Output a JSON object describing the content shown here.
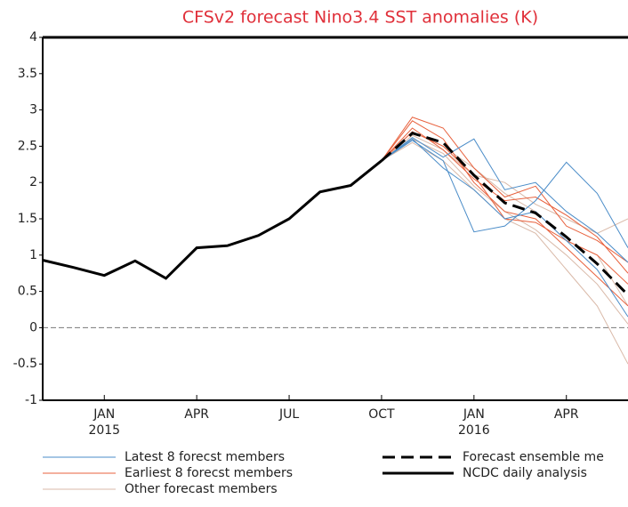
{
  "chart_data": {
    "type": "line",
    "title": "CFSv2 forecast Nino3.4 SST anomalies (K)",
    "title_color": "#e0303a",
    "categories": [
      null,
      null,
      "JAN",
      null,
      null,
      "APR",
      null,
      null,
      "JUL",
      null,
      null,
      "OCT",
      null,
      null,
      "JAN",
      null,
      null,
      "APR",
      null,
      null
    ],
    "category_years": [
      null,
      null,
      "2015",
      null,
      null,
      null,
      null,
      null,
      null,
      null,
      null,
      null,
      null,
      null,
      "2016",
      null,
      null,
      null,
      null,
      null
    ],
    "ylim": [
      -1,
      4
    ],
    "yticks": [
      -1,
      -0.5,
      0,
      0.5,
      1,
      1.5,
      2,
      2.5,
      3,
      3.5,
      4
    ],
    "member_groups": [
      {
        "name": "Other forecast members",
        "color": "#d9b9a8",
        "members": [
          [
            null,
            null,
            null,
            null,
            null,
            null,
            null,
            null,
            null,
            null,
            null,
            2.3,
            2.55,
            2.3,
            1.9,
            1.5,
            1.3,
            0.8,
            0.3,
            -0.5
          ],
          [
            null,
            null,
            null,
            null,
            null,
            null,
            null,
            null,
            null,
            null,
            null,
            2.3,
            2.65,
            2.45,
            2.1,
            2.0,
            1.7,
            1.5,
            1.3,
            1.5
          ],
          [
            null,
            null,
            null,
            null,
            null,
            null,
            null,
            null,
            null,
            null,
            null,
            2.3,
            2.6,
            2.4,
            1.95,
            1.6,
            1.35,
            1.0,
            0.6,
            0.05
          ],
          [
            null,
            null,
            null,
            null,
            null,
            null,
            null,
            null,
            null,
            null,
            null,
            2.3,
            2.7,
            2.5,
            2.2,
            1.85,
            1.6,
            1.2,
            1.0,
            0.3
          ]
        ]
      },
      {
        "name": "Earliest 8 forecst members",
        "color": "#e8603c",
        "members": [
          [
            null,
            null,
            null,
            null,
            null,
            null,
            null,
            null,
            null,
            null,
            null,
            2.3,
            2.9,
            2.75,
            2.2,
            1.8,
            1.95,
            1.4,
            1.2,
            0.9
          ],
          [
            null,
            null,
            null,
            null,
            null,
            null,
            null,
            null,
            null,
            null,
            null,
            2.3,
            2.85,
            2.6,
            2.0,
            1.6,
            1.5,
            1.1,
            0.7,
            0.3
          ],
          [
            null,
            null,
            null,
            null,
            null,
            null,
            null,
            null,
            null,
            null,
            null,
            2.3,
            2.7,
            2.5,
            2.1,
            1.5,
            1.45,
            1.2,
            1.0,
            0.6
          ],
          [
            null,
            null,
            null,
            null,
            null,
            null,
            null,
            null,
            null,
            null,
            null,
            2.3,
            2.75,
            2.45,
            2.05,
            1.75,
            1.8,
            1.55,
            1.25,
            0.75
          ]
        ]
      },
      {
        "name": "Latest 8 forecst members",
        "color": "#4a8cc8",
        "members": [
          [
            null,
            null,
            null,
            null,
            null,
            null,
            null,
            null,
            null,
            null,
            null,
            2.3,
            2.62,
            2.35,
            2.6,
            1.9,
            2.0,
            1.6,
            1.3,
            0.9
          ],
          [
            null,
            null,
            null,
            null,
            null,
            null,
            null,
            null,
            null,
            null,
            null,
            2.3,
            2.58,
            2.3,
            1.32,
            1.4,
            1.75,
            2.28,
            1.85,
            1.1
          ],
          [
            null,
            null,
            null,
            null,
            null,
            null,
            null,
            null,
            null,
            null,
            null,
            2.3,
            2.6,
            2.2,
            1.9,
            1.5,
            1.6,
            1.2,
            0.8,
            0.15
          ]
        ]
      }
    ],
    "series": [
      {
        "name": "Forecast ensemble me",
        "color": "#000000",
        "dashed": true,
        "values": [
          null,
          null,
          null,
          null,
          null,
          null,
          null,
          null,
          null,
          null,
          null,
          2.3,
          2.68,
          2.55,
          2.1,
          1.72,
          1.58,
          1.25,
          0.88,
          0.45
        ]
      },
      {
        "name": "NCDC daily analysis",
        "color": "#000000",
        "dashed": false,
        "values": [
          0.93,
          0.83,
          0.72,
          0.92,
          0.68,
          1.1,
          1.13,
          1.27,
          1.5,
          1.87,
          1.96,
          2.3,
          null,
          null,
          null,
          null,
          null,
          null,
          null,
          null
        ]
      }
    ]
  }
}
